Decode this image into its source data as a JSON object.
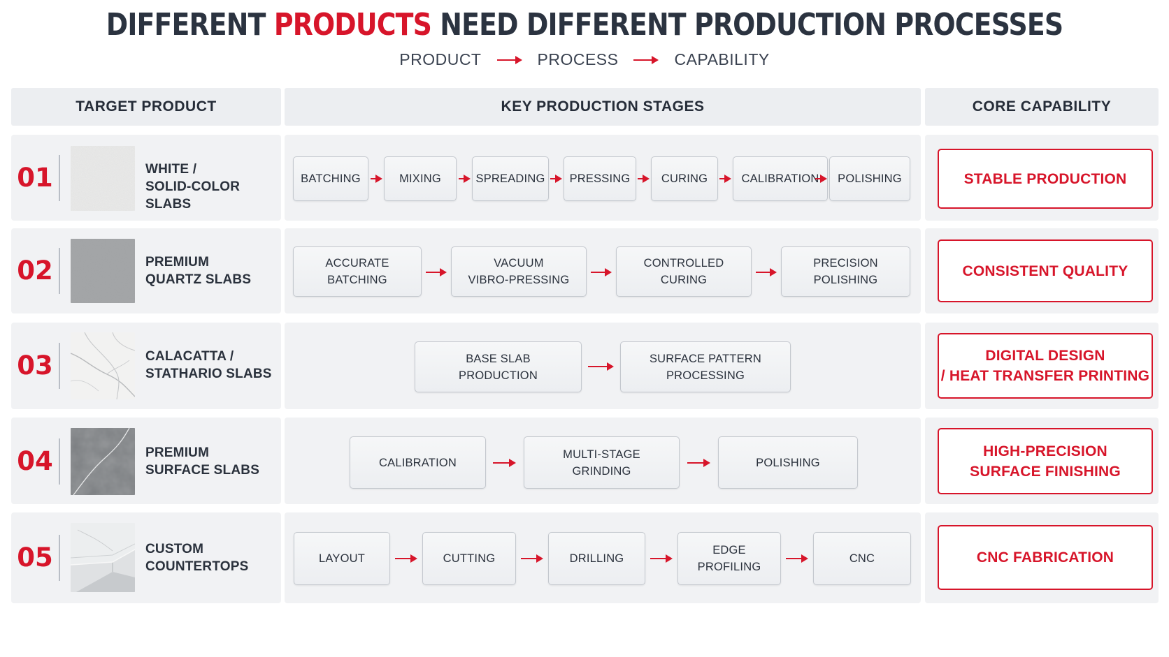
{
  "title": {
    "part1": "DIFFERENT ",
    "accent": "PRODUCTS",
    "part2": " NEED DIFFERENT PRODUCTION PROCESSES"
  },
  "subtitle": {
    "step1": "PRODUCT",
    "step2": "PROCESS",
    "step3": "CAPABILITY"
  },
  "headers": {
    "target_product": "TARGET PRODUCT",
    "key_stages": "KEY PRODUCTION STAGES",
    "core_capability": "CORE CAPABILITY"
  },
  "colors": {
    "accent": "#d7152a",
    "text_dark": "#2b3340",
    "row_background": "#f1f2f4",
    "header_background": "#eceef1"
  },
  "rows": [
    {
      "number": "01",
      "product_line1": "WHITE /",
      "product_line2": "SOLID-COLOR SLABS",
      "swatch": "white-solid-slab-image",
      "stages": [
        {
          "line1": "BATCHING",
          "line2": ""
        },
        {
          "line1": "MIXING",
          "line2": ""
        },
        {
          "line1": "SPREADING",
          "line2": ""
        },
        {
          "line1": "PRESSING",
          "line2": ""
        },
        {
          "line1": "CURING",
          "line2": ""
        },
        {
          "line1": "CALIBRATION",
          "line2": ""
        },
        {
          "line1": "POLISHING",
          "line2": ""
        }
      ],
      "capability_line1": "STABLE PRODUCTION",
      "capability_line2": ""
    },
    {
      "number": "02",
      "product_line1": "PREMIUM",
      "product_line2": "QUARTZ SLABS",
      "swatch": "grey-quartz-slab-image",
      "stages": [
        {
          "line1": "ACCURATE",
          "line2": "BATCHING"
        },
        {
          "line1": "VACUUM",
          "line2": "VIBRO-PRESSING"
        },
        {
          "line1": "CONTROLLED",
          "line2": "CURING"
        },
        {
          "line1": "PRECISION",
          "line2": "POLISHING"
        }
      ],
      "capability_line1": "CONSISTENT QUALITY",
      "capability_line2": ""
    },
    {
      "number": "03",
      "product_line1": "CALACATTA /",
      "product_line2": "STATHARIO SLABS",
      "swatch": "white-veined-marble-slab-image",
      "stages": [
        {
          "line1": "BASE SLAB",
          "line2": "PRODUCTION"
        },
        {
          "line1": "SURFACE PATTERN",
          "line2": "PROCESSING"
        }
      ],
      "capability_line1": "DIGITAL DESIGN",
      "capability_line2": "/ HEAT TRANSFER PRINTING"
    },
    {
      "number": "04",
      "product_line1": "PREMIUM",
      "product_line2": "SURFACE SLABS",
      "swatch": "dark-grey-veined-slab-image",
      "stages": [
        {
          "line1": "CALIBRATION",
          "line2": ""
        },
        {
          "line1": "MULTI-STAGE",
          "line2": "GRINDING"
        },
        {
          "line1": "POLISHING",
          "line2": ""
        }
      ],
      "capability_line1": "HIGH-PRECISION",
      "capability_line2": "SURFACE FINISHING"
    },
    {
      "number": "05",
      "product_line1": "CUSTOM",
      "product_line2": "COUNTERTOPS",
      "swatch": "marble-countertop-corner-image",
      "stages": [
        {
          "line1": "LAYOUT",
          "line2": ""
        },
        {
          "line1": "CUTTING",
          "line2": ""
        },
        {
          "line1": "DRILLING",
          "line2": ""
        },
        {
          "line1": "EDGE",
          "line2": "PROFILING"
        },
        {
          "line1": "CNC",
          "line2": ""
        }
      ],
      "capability_line1": "CNC FABRICATION",
      "capability_line2": ""
    }
  ]
}
